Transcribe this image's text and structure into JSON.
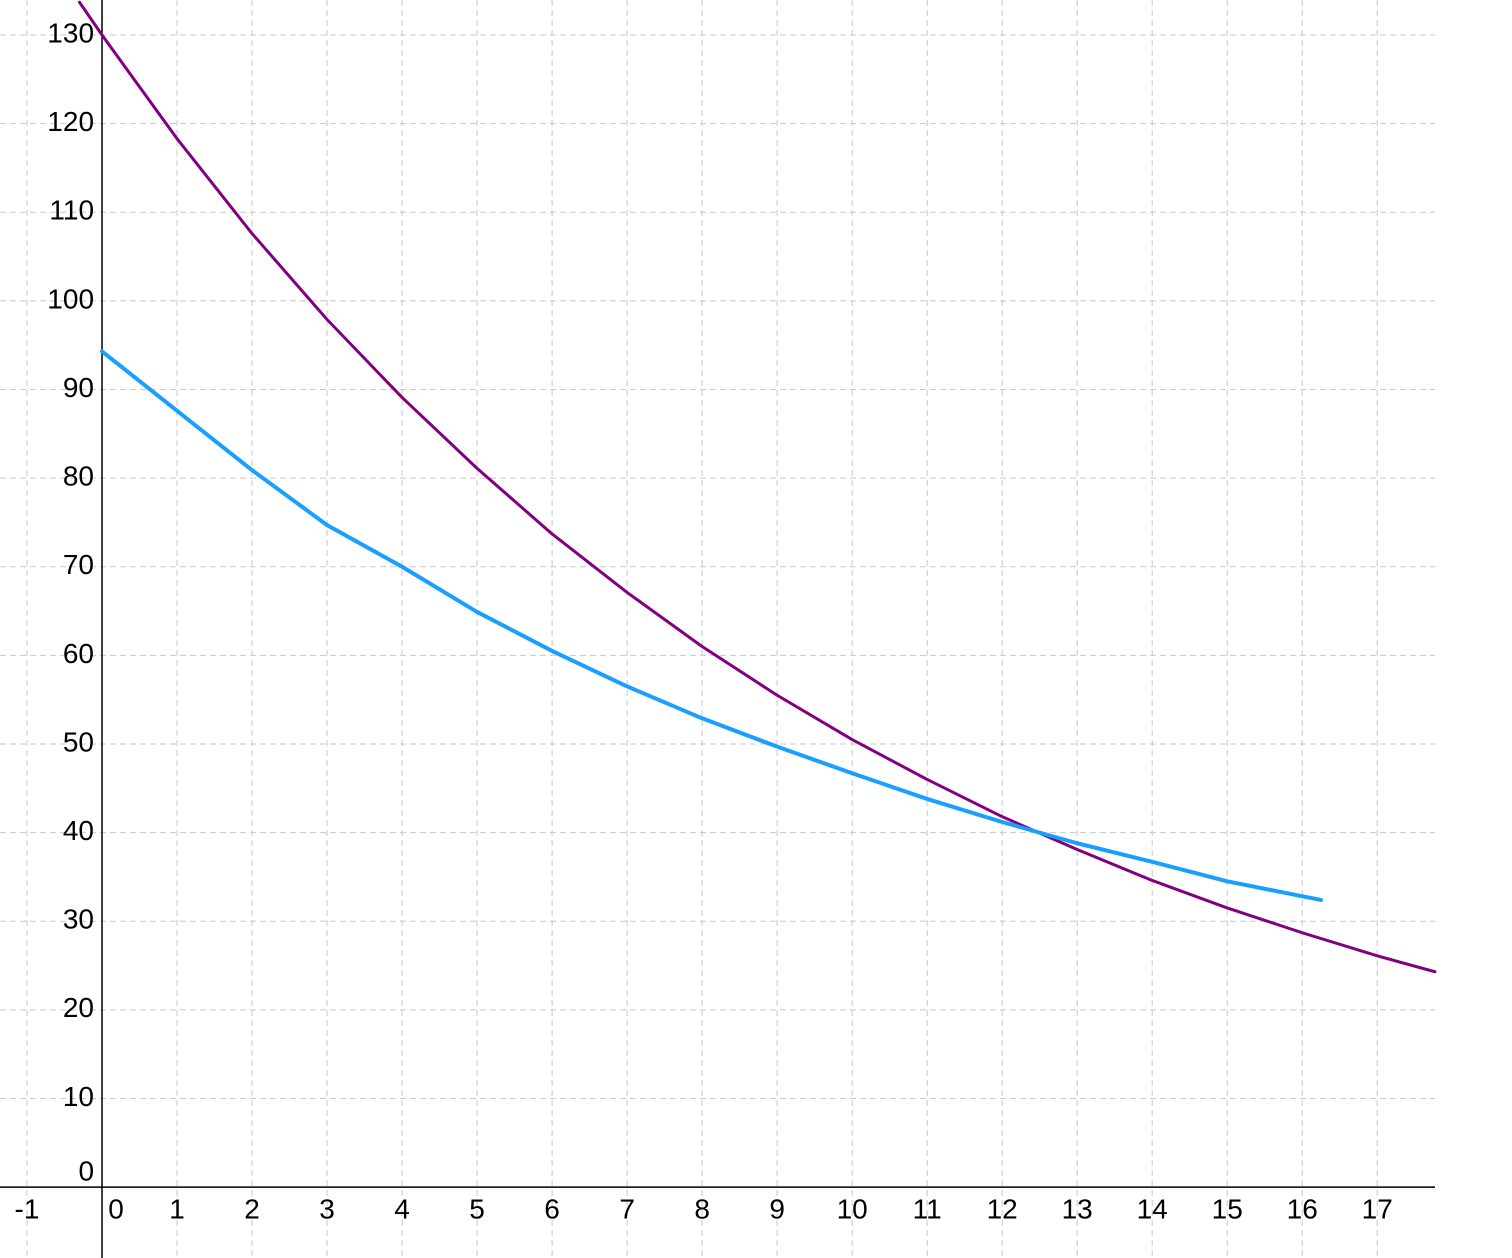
{
  "chart_data": {
    "type": "line",
    "xlim": [
      -1.36,
      17.77
    ],
    "ylim": [
      -8,
      133.95
    ],
    "xticks": [
      -1,
      0,
      1,
      2,
      3,
      4,
      5,
      6,
      7,
      8,
      9,
      10,
      11,
      12,
      13,
      14,
      15,
      16,
      17
    ],
    "yticks": [
      0,
      10,
      20,
      30,
      40,
      50,
      60,
      70,
      80,
      90,
      100,
      110,
      120,
      130
    ],
    "grid": true,
    "series": [
      {
        "color": "#800080",
        "x": [
          -0.3,
          0,
          1,
          2,
          3,
          4,
          5,
          6,
          7,
          8,
          9,
          10,
          11,
          12,
          13,
          14,
          15,
          16,
          17,
          17.77
        ],
        "values": [
          133.7,
          130,
          118.3,
          107.6,
          97.9,
          89.1,
          81.1,
          73.7,
          67.1,
          61.0,
          55.5,
          50.5,
          46.0,
          41.8,
          38.1,
          34.6,
          31.5,
          28.7,
          26.1,
          24.3
        ]
      },
      {
        "color": "#1a9fff",
        "x": [
          0,
          1,
          2,
          3,
          4,
          5,
          6,
          7,
          8,
          9,
          10,
          11,
          12,
          13,
          14,
          15,
          16.25
        ],
        "values": [
          94.3,
          87.6,
          80.9,
          74.7,
          70.0,
          64.9,
          60.5,
          56.5,
          52.9,
          49.7,
          46.7,
          43.8,
          41.2,
          38.8,
          36.7,
          34.5,
          32.4
        ]
      }
    ]
  }
}
